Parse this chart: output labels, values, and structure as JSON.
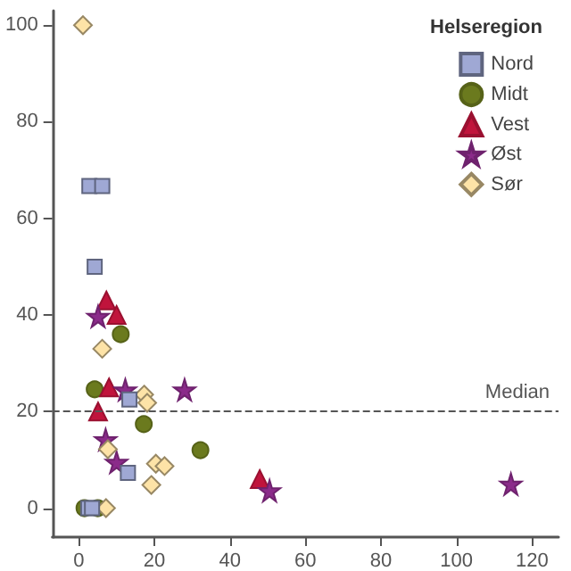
{
  "chart_data": {
    "type": "scatter",
    "legend_title": "Helseregion",
    "legend": "top right",
    "grid": false,
    "xlim": [
      -7,
      127
    ],
    "xticks": [
      0,
      20,
      40,
      60,
      80,
      100,
      120
    ],
    "ylim": [
      -6,
      103
    ],
    "yticks": [
      0,
      20,
      40,
      60,
      80,
      100
    ],
    "ref_lines": [
      {
        "axis": "y",
        "value": 20,
        "label": "Median",
        "line_style": "dashed",
        "color": "#555555"
      }
    ],
    "series": [
      {
        "name": "Nord",
        "color": "#9fa8d4",
        "marker": "square",
        "x": [
          2.8,
          6.2,
          4.2,
          13.4,
          13,
          2.5,
          3.5
        ],
        "values": [
          66.7,
          66.7,
          50,
          22.5,
          7.3,
          0,
          0
        ]
      },
      {
        "name": "Midt",
        "color": "#6b7a1e",
        "marker": "circle",
        "x": [
          1.5,
          5,
          4.2,
          11.1,
          17.2,
          32.2
        ],
        "values": [
          0,
          0,
          24.6,
          36,
          17.4,
          12
        ]
      },
      {
        "name": "Vest",
        "color": "#c0143c",
        "marker": "triangle",
        "x": [
          7.3,
          10,
          8,
          5.1,
          47.9
        ],
        "values": [
          43,
          40,
          25,
          20,
          6
        ]
      },
      {
        "name": "Øst",
        "color": "#8b2b8a",
        "marker": "star",
        "x": [
          5.1,
          12.3,
          28,
          7.1,
          10,
          50.5,
          114.4
        ],
        "values": [
          39.7,
          24.5,
          24.5,
          14.2,
          9.5,
          3.6,
          5
        ]
      },
      {
        "name": "Sør",
        "color": "#fde3a7",
        "marker": "diamond",
        "x": [
          1.1,
          6.2,
          17.3,
          18.1,
          7.7,
          20.4,
          22.7,
          19.2,
          7.2
        ],
        "values": [
          100,
          33,
          23.5,
          21.8,
          12.2,
          9.2,
          8.7,
          4.8,
          0
        ]
      }
    ]
  }
}
